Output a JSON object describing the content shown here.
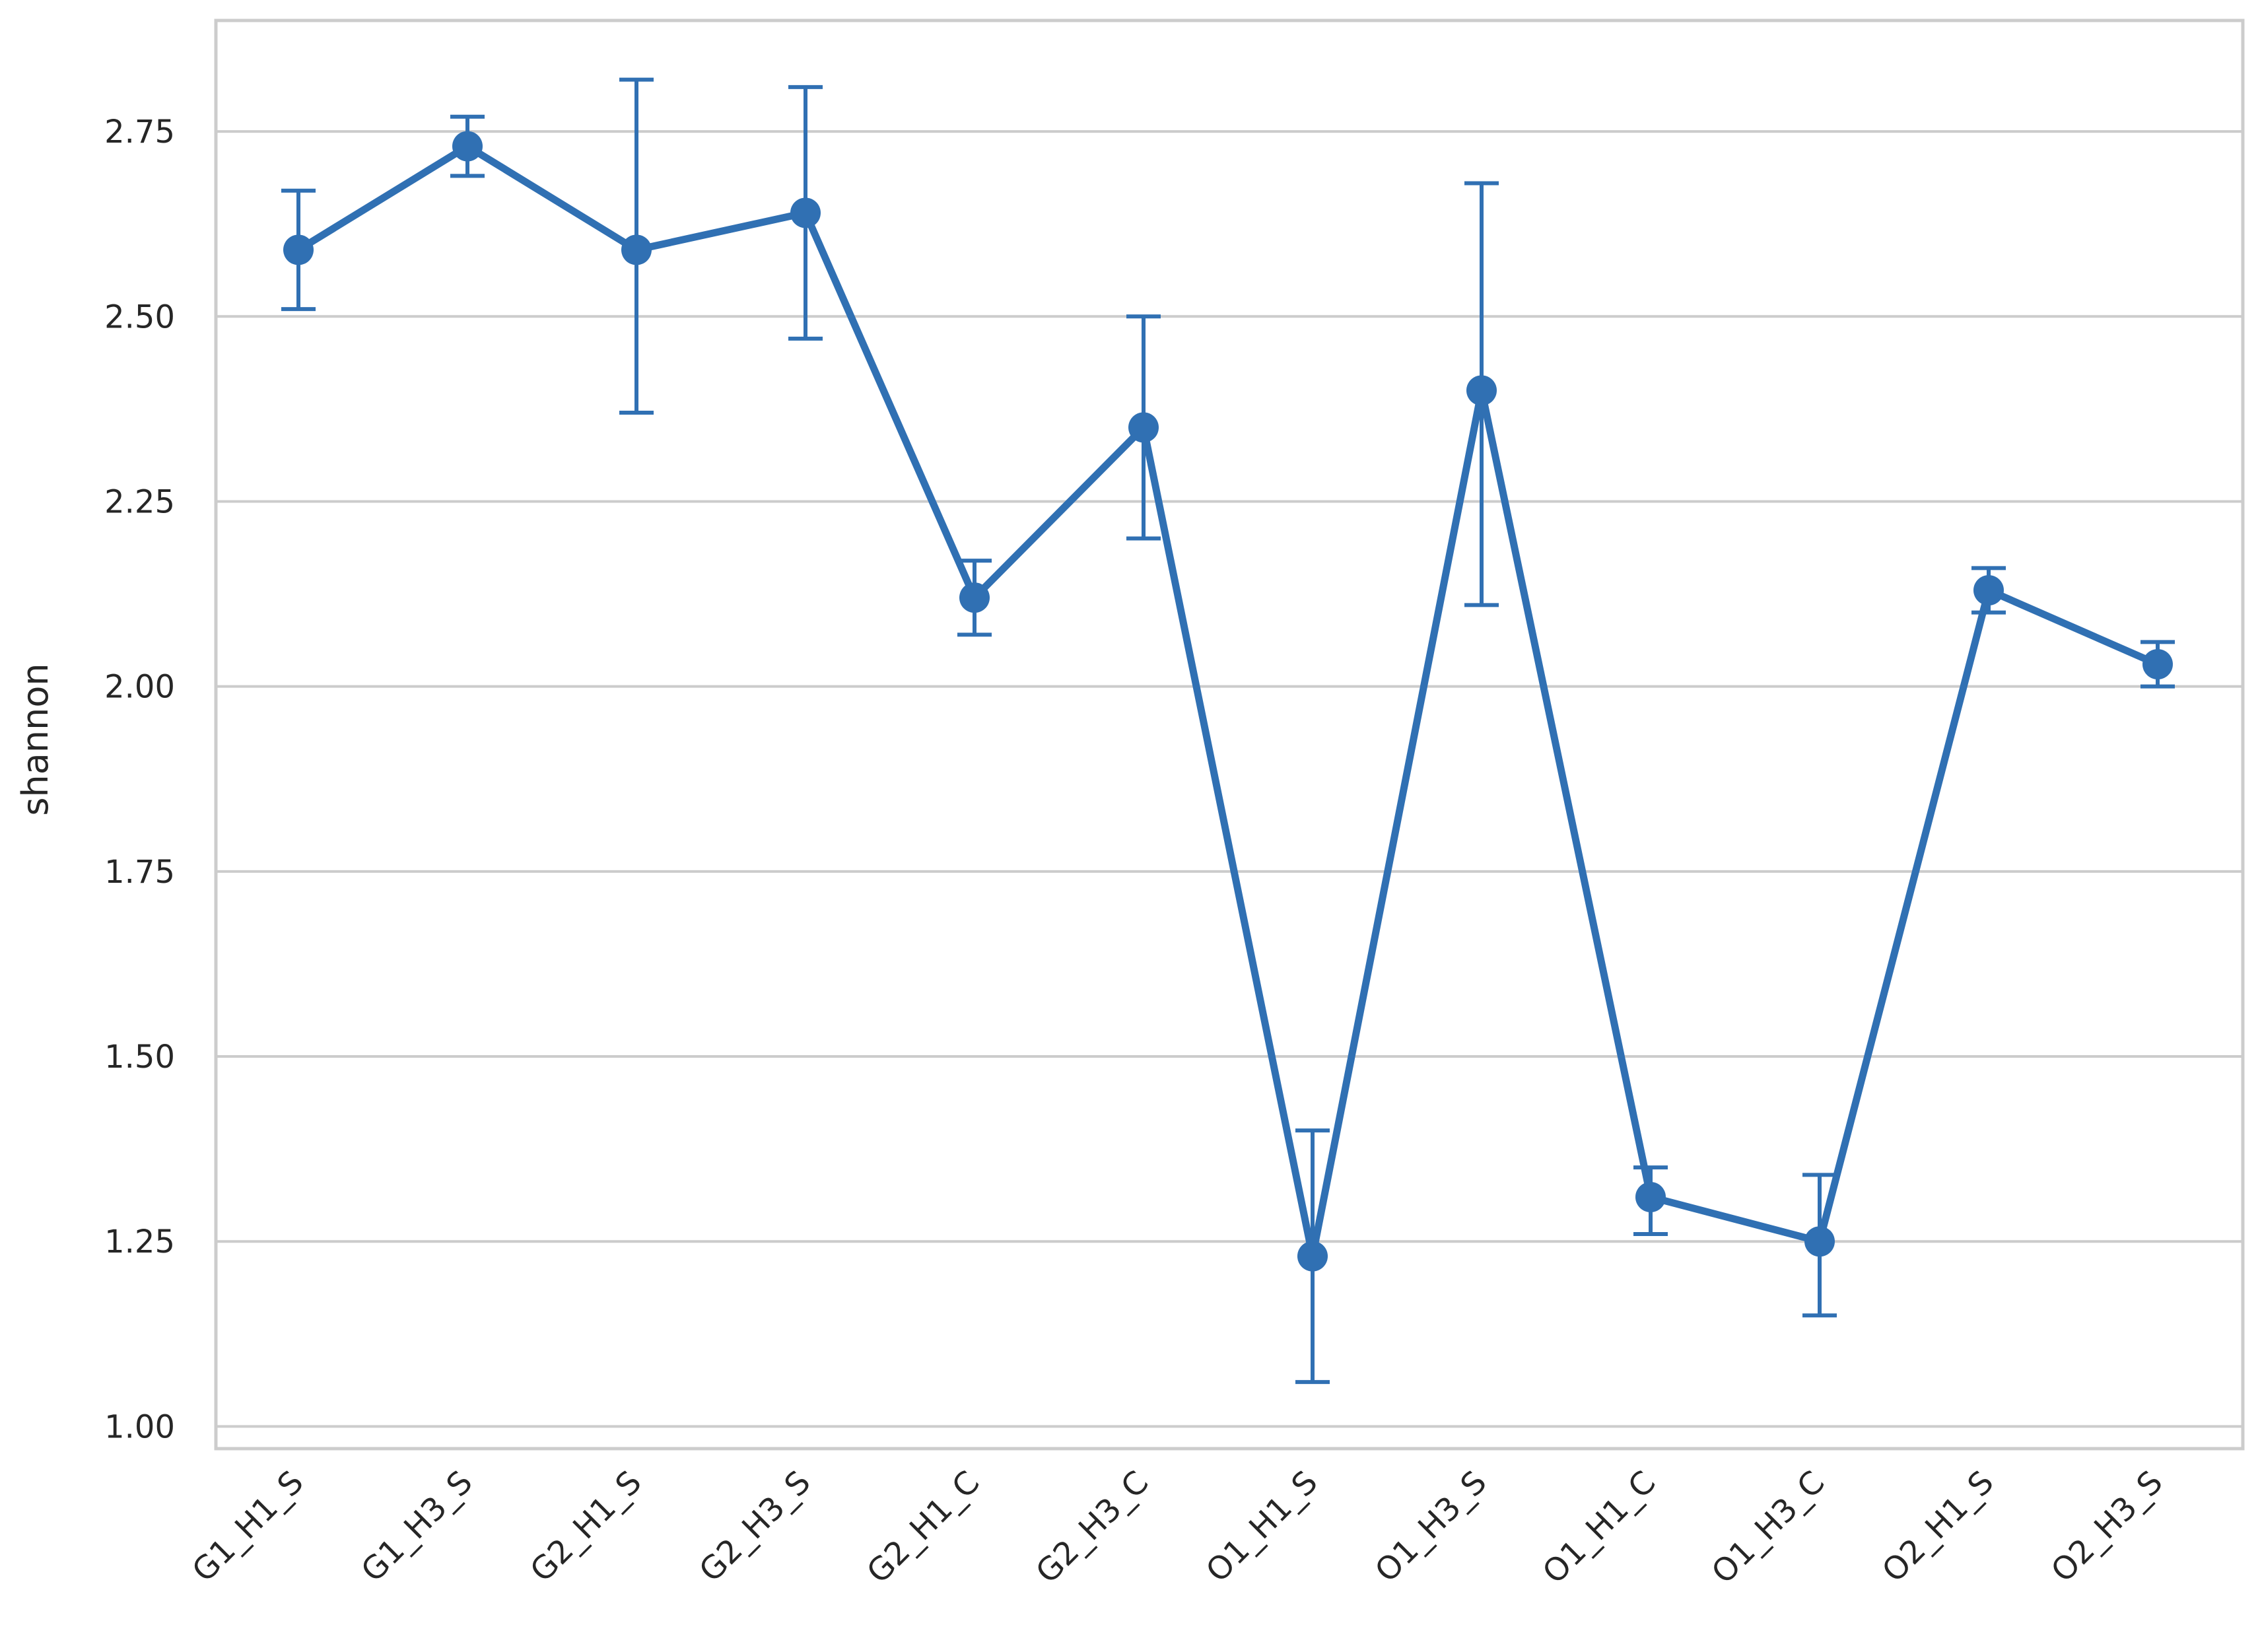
{
  "chart_data": {
    "type": "line",
    "title": "",
    "xlabel": "",
    "ylabel": "shannon",
    "categories": [
      "G1_H1_S",
      "G1_H3_S",
      "G2_H1_S",
      "G2_H3_S",
      "G2_H1_C",
      "G2_H3_C",
      "O1_H1_S",
      "O1_H3_S",
      "O1_H1_C",
      "O1_H3_C",
      "O2_H1_S",
      "O2_H3_S"
    ],
    "series": [
      {
        "values": [
          2.59,
          2.73,
          2.59,
          2.64,
          2.12,
          2.35,
          1.23,
          2.4,
          1.31,
          1.25,
          2.13,
          2.03
        ],
        "err_low": [
          2.51,
          2.69,
          2.37,
          2.47,
          2.07,
          2.2,
          1.06,
          2.11,
          1.26,
          1.15,
          2.1,
          2.0
        ],
        "err_high": [
          2.67,
          2.77,
          2.82,
          2.81,
          2.17,
          2.5,
          1.4,
          2.68,
          1.35,
          1.34,
          2.16,
          2.06
        ]
      }
    ],
    "ylim": [
      0.97,
      2.9
    ],
    "yticks": [
      1.0,
      1.25,
      1.5,
      1.75,
      2.0,
      2.25,
      2.5,
      2.75
    ],
    "ytick_labels": [
      "1.00",
      "1.25",
      "1.50",
      "1.75",
      "2.00",
      "2.25",
      "2.50",
      "2.75"
    ],
    "grid": true,
    "color": "#3070b3",
    "grid_color": "#cccccc"
  }
}
